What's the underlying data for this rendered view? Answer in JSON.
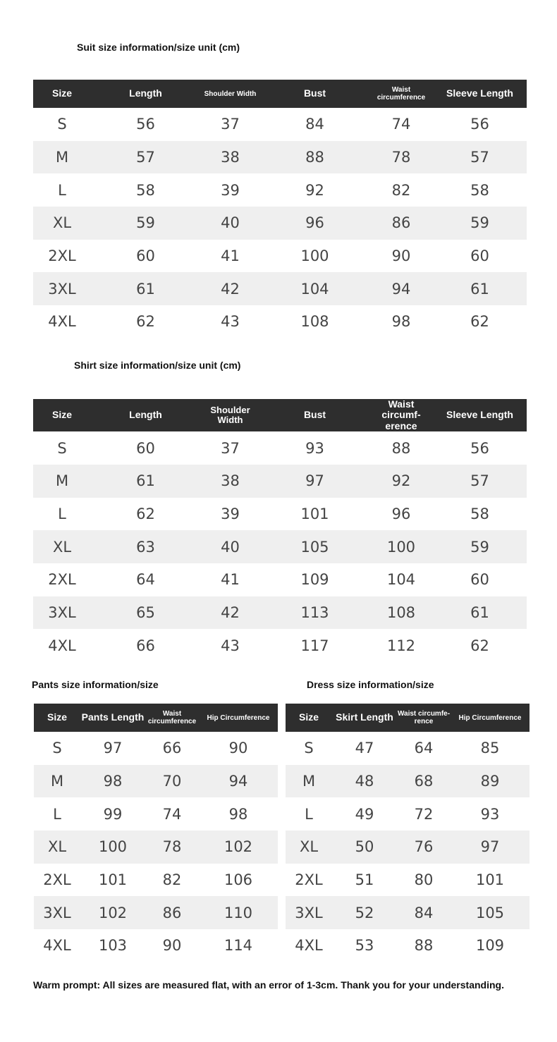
{
  "suit": {
    "title": "Suit size information/size unit (cm)",
    "headers": [
      "Size",
      "Length",
      "Shoulder Width",
      "Bust",
      "Waist circumference",
      "Sleeve Length"
    ],
    "rows": [
      [
        "S",
        "56",
        "37",
        "84",
        "74",
        "56"
      ],
      [
        "M",
        "57",
        "38",
        "88",
        "78",
        "57"
      ],
      [
        "L",
        "58",
        "39",
        "92",
        "82",
        "58"
      ],
      [
        "XL",
        "59",
        "40",
        "96",
        "86",
        "59"
      ],
      [
        "2XL",
        "60",
        "41",
        "100",
        "90",
        "60"
      ],
      [
        "3XL",
        "61",
        "42",
        "104",
        "94",
        "61"
      ],
      [
        "4XL",
        "62",
        "43",
        "108",
        "98",
        "62"
      ]
    ]
  },
  "shirt": {
    "title": "Shirt size information/size unit (cm)",
    "headers": [
      "Size",
      "Length",
      "Shoulder Width",
      "Bust",
      "Waist circumf-erence",
      "Sleeve Length"
    ],
    "rows": [
      [
        "S",
        "60",
        "37",
        "93",
        "88",
        "56"
      ],
      [
        "M",
        "61",
        "38",
        "97",
        "92",
        "57"
      ],
      [
        "L",
        "62",
        "39",
        "101",
        "96",
        "58"
      ],
      [
        "XL",
        "63",
        "40",
        "105",
        "100",
        "59"
      ],
      [
        "2XL",
        "64",
        "41",
        "109",
        "104",
        "60"
      ],
      [
        "3XL",
        "65",
        "42",
        "113",
        "108",
        "61"
      ],
      [
        "4XL",
        "66",
        "43",
        "117",
        "112",
        "62"
      ]
    ]
  },
  "pants": {
    "title": "Pants size information/size",
    "headers": [
      "Size",
      "Pants Length",
      "Waist circumference",
      "Hip Circumference"
    ],
    "rows": [
      [
        "S",
        "97",
        "66",
        "90"
      ],
      [
        "M",
        "98",
        "70",
        "94"
      ],
      [
        "L",
        "99",
        "74",
        "98"
      ],
      [
        "XL",
        "100",
        "78",
        "102"
      ],
      [
        "2XL",
        "101",
        "82",
        "106"
      ],
      [
        "3XL",
        "102",
        "86",
        "110"
      ],
      [
        "4XL",
        "103",
        "90",
        "114"
      ]
    ]
  },
  "dress": {
    "title": "Dress size information/size",
    "headers": [
      "Size",
      "Skirt Length",
      "Waist circumfe-rence",
      "Hip Circumference"
    ],
    "rows": [
      [
        "S",
        "47",
        "64",
        "85"
      ],
      [
        "M",
        "48",
        "68",
        "89"
      ],
      [
        "L",
        "49",
        "72",
        "93"
      ],
      [
        "XL",
        "50",
        "76",
        "97"
      ],
      [
        "2XL",
        "51",
        "80",
        "101"
      ],
      [
        "3XL",
        "52",
        "84",
        "105"
      ],
      [
        "4XL",
        "53",
        "88",
        "109"
      ]
    ]
  },
  "footer": "Warm prompt: All sizes are measured flat, with an error of 1-3cm. Thank you for your understanding.",
  "colors": {
    "header_bg": "#2e2e2e",
    "alt_row_bg": "#efefef"
  }
}
